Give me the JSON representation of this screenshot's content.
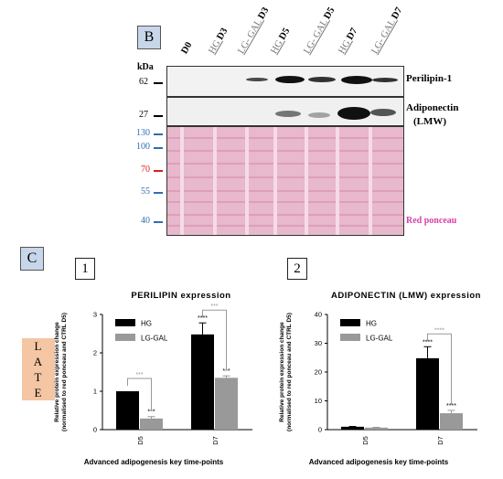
{
  "panel_b": {
    "letter": "B",
    "lanes": [
      {
        "prefix": "",
        "bold": "D0"
      },
      {
        "prefix": "HG ",
        "bold": "D3"
      },
      {
        "prefix": "LG- GAL ",
        "bold": "D3"
      },
      {
        "prefix": "HG ",
        "bold": "D5"
      },
      {
        "prefix": "LG- GAL ",
        "bold": "D5"
      },
      {
        "prefix": "HG ",
        "bold": "D7"
      },
      {
        "prefix": "LG- GAL ",
        "bold": "D7"
      }
    ],
    "kda_label": "kDa",
    "blot1_marker": "62",
    "blot1_label": "Perilipin-1",
    "blot2_marker": "27",
    "blot2_label_line1": "Adiponectin",
    "blot2_label_line2": "(LMW)",
    "ponceau_markers": [
      "130",
      "100",
      "70",
      "55",
      "40"
    ],
    "ponceau_marker_colors": [
      "#2f6db3",
      "#2f6db3",
      "#d62020",
      "#2f6db3",
      "#2f6db3"
    ],
    "ponceau_label": "Red ponceau",
    "ponceau_label_color": "#d63fa8"
  },
  "panel_c": {
    "letter": "C",
    "late_letters": [
      "L",
      "A",
      "T",
      "E"
    ],
    "chart1_number": "1",
    "chart2_number": "2"
  },
  "chart_data": [
    {
      "type": "bar",
      "title": "PERILIPIN expression",
      "categories": [
        "D5",
        "D7"
      ],
      "series": [
        {
          "name": "HG",
          "values": [
            1.0,
            2.48
          ],
          "errors": [
            0.0,
            0.3
          ],
          "color": "#000000"
        },
        {
          "name": "LG-GAL",
          "values": [
            0.29,
            1.35
          ],
          "errors": [
            0.05,
            0.05
          ],
          "color": "#999999"
        }
      ],
      "ylabel_line1": "Relative protein expression change",
      "ylabel_line2": "(normalised to red ponceau and CTRL D5)",
      "xlabel": "Advanced adipogenesis key time-points",
      "ylim": [
        0,
        3
      ],
      "yticks": [
        "0",
        "1",
        "2",
        "3"
      ],
      "annotations": [
        {
          "category": "D5",
          "series": "LG-GAL",
          "text": "***"
        },
        {
          "category": "D7",
          "series": "HG",
          "text": "****"
        },
        {
          "category": "D7",
          "series": "LG-GAL",
          "text": "***"
        },
        {
          "category": "D5",
          "bracket": true,
          "text": "***"
        },
        {
          "category": "D7",
          "bracket": true,
          "text": "***"
        }
      ],
      "legend_position": "top-left"
    },
    {
      "type": "bar",
      "title": "ADIPONECTIN (LMW) expression",
      "categories": [
        "D5",
        "D7"
      ],
      "series": [
        {
          "name": "HG",
          "values": [
            1.0,
            24.8
          ],
          "errors": [
            0.1,
            4.0
          ],
          "color": "#000000"
        },
        {
          "name": "LG-GAL",
          "values": [
            0.7,
            5.7
          ],
          "errors": [
            0.1,
            1.0
          ],
          "color": "#999999"
        }
      ],
      "ylabel_line1": "Relative protein expression change",
      "ylabel_line2": "(normalised to red ponceau and CTRL D5)",
      "xlabel": "Advanced adipogenesis key time-points",
      "ylim": [
        0,
        40
      ],
      "yticks": [
        "0",
        "10",
        "20",
        "30",
        "40"
      ],
      "annotations": [
        {
          "category": "D7",
          "series": "HG",
          "text": "****"
        },
        {
          "category": "D7",
          "series": "LG-GAL",
          "text": "****"
        },
        {
          "category": "D7",
          "bracket": true,
          "text": "****"
        }
      ],
      "legend_position": "top-left"
    }
  ]
}
